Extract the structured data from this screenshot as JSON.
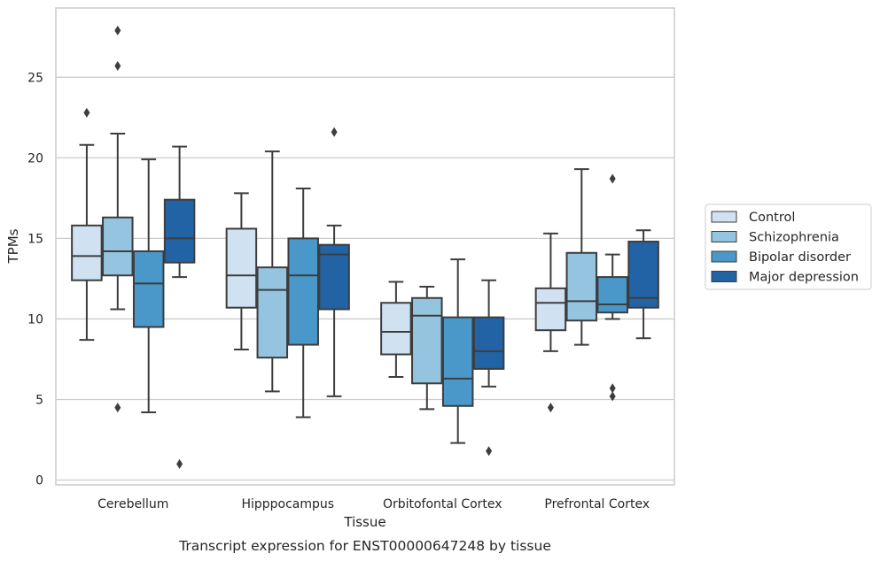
{
  "chart_data": {
    "type": "boxplot",
    "title": "",
    "xlabel": "Tissue",
    "ylabel": "TPMs",
    "caption": "Transcript expression for ENST00000647248 by tissue",
    "ylim": [
      -0.3,
      29.3
    ],
    "yticks": [
      0,
      5,
      10,
      15,
      20,
      25
    ],
    "grid": "horizontal",
    "legend_position": "right",
    "categories": [
      "Cerebellum",
      "Hipppocampus",
      "Orbitofontal Cortex",
      "Prefrontal Cortex"
    ],
    "series": [
      {
        "name": "Control",
        "color": "#d0e1f2",
        "boxes": [
          {
            "whislo": 8.7,
            "q1": 12.4,
            "med": 13.9,
            "q3": 15.8,
            "whishi": 20.8,
            "fliers": [
              22.8
            ]
          },
          {
            "whislo": 8.1,
            "q1": 10.7,
            "med": 12.7,
            "q3": 15.6,
            "whishi": 17.8,
            "fliers": []
          },
          {
            "whislo": 6.4,
            "q1": 7.8,
            "med": 9.2,
            "q3": 11.0,
            "whishi": 12.3,
            "fliers": []
          },
          {
            "whislo": 8.0,
            "q1": 9.3,
            "med": 11.0,
            "q3": 11.9,
            "whishi": 15.3,
            "fliers": [
              4.5
            ]
          }
        ]
      },
      {
        "name": "Schizophrenia",
        "color": "#94c4df",
        "boxes": [
          {
            "whislo": 10.6,
            "q1": 12.7,
            "med": 14.2,
            "q3": 16.3,
            "whishi": 21.5,
            "fliers": [
              27.9,
              25.7,
              4.5
            ]
          },
          {
            "whislo": 5.5,
            "q1": 7.6,
            "med": 11.8,
            "q3": 13.2,
            "whishi": 20.4,
            "fliers": []
          },
          {
            "whislo": 4.4,
            "q1": 6.0,
            "med": 10.2,
            "q3": 11.3,
            "whishi": 12.0,
            "fliers": []
          },
          {
            "whislo": 8.4,
            "q1": 9.9,
            "med": 11.1,
            "q3": 14.1,
            "whishi": 19.3,
            "fliers": []
          }
        ]
      },
      {
        "name": "Bipolar disorder",
        "color": "#4a98c9",
        "boxes": [
          {
            "whislo": 4.2,
            "q1": 9.5,
            "med": 12.2,
            "q3": 14.2,
            "whishi": 19.9,
            "fliers": []
          },
          {
            "whislo": 3.9,
            "q1": 8.4,
            "med": 12.7,
            "q3": 15.0,
            "whishi": 18.1,
            "fliers": []
          },
          {
            "whislo": 2.3,
            "q1": 4.6,
            "med": 6.3,
            "q3": 10.1,
            "whishi": 13.7,
            "fliers": []
          },
          {
            "whislo": 10.0,
            "q1": 10.4,
            "med": 10.9,
            "q3": 12.6,
            "whishi": 14.0,
            "fliers": [
              18.7,
              5.7,
              5.2
            ]
          }
        ]
      },
      {
        "name": "Major depression",
        "color": "#2263a6",
        "boxes": [
          {
            "whislo": 12.6,
            "q1": 13.5,
            "med": 15.0,
            "q3": 17.4,
            "whishi": 20.7,
            "fliers": [
              1.0
            ]
          },
          {
            "whislo": 5.2,
            "q1": 10.6,
            "med": 14.0,
            "q3": 14.6,
            "whishi": 15.8,
            "fliers": [
              21.6
            ]
          },
          {
            "whislo": 5.8,
            "q1": 6.9,
            "med": 8.0,
            "q3": 10.1,
            "whishi": 12.4,
            "fliers": [
              1.8
            ]
          },
          {
            "whislo": 8.8,
            "q1": 10.7,
            "med": 11.3,
            "q3": 14.8,
            "whishi": 15.5,
            "fliers": []
          }
        ]
      }
    ]
  }
}
